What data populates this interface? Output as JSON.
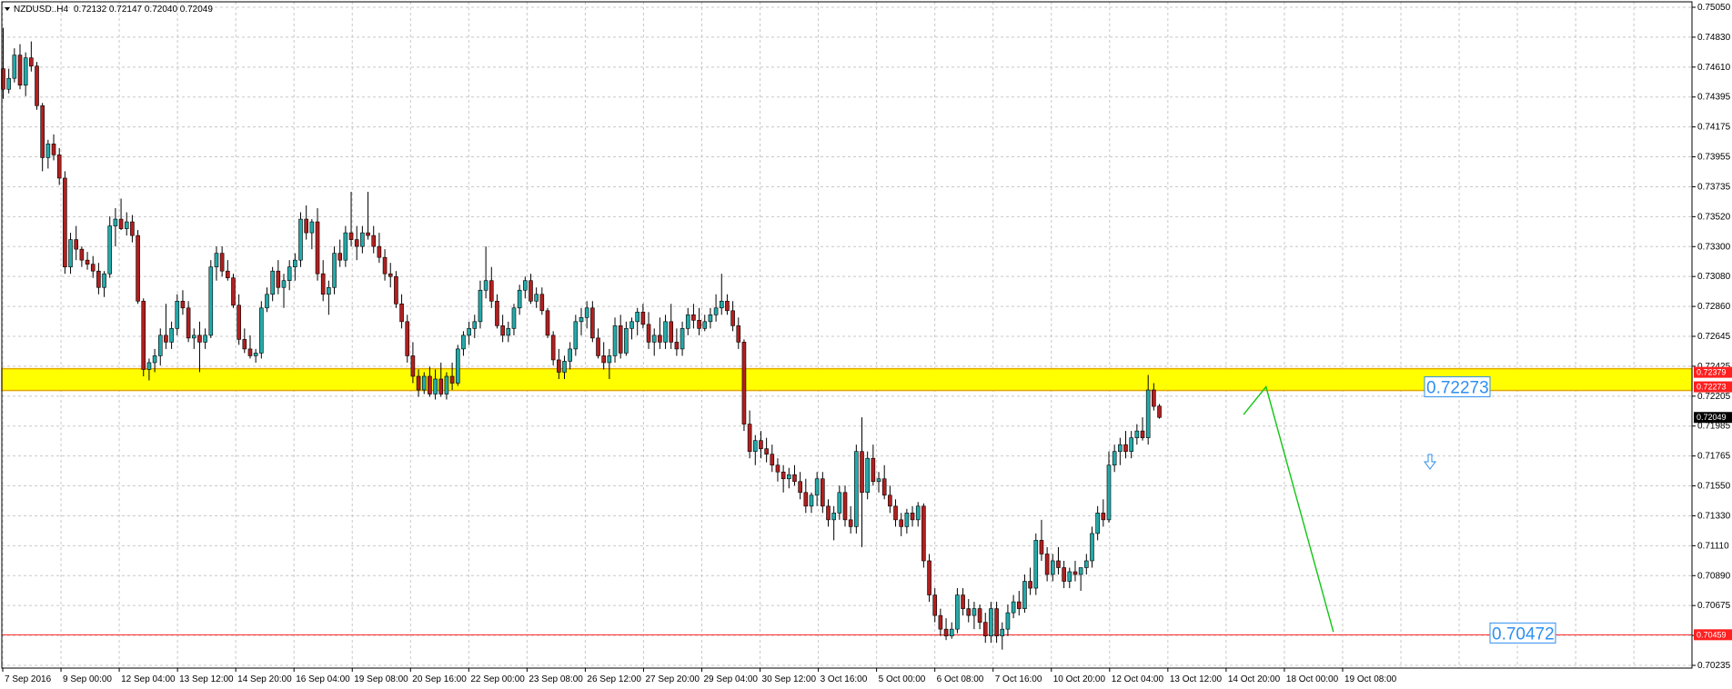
{
  "header": {
    "dropdown_icon": "triangle-down-icon",
    "symbol": "NZDUSD..H4",
    "ohlc": "0.72132 0.72147 0.72040 0.72049"
  },
  "colors": {
    "bull": "#25a9a9",
    "bear": "#b21f1f",
    "wick": "#000000",
    "grid": "#c8c8c8",
    "zone_fill": "#ffff00",
    "zone_border": "#e0a800",
    "support_line": "#ff2020",
    "projection": "#11c611",
    "level_label": "#2e8ff0"
  },
  "chart_data": {
    "type": "candlestick",
    "ylim": [
      0.70235,
      0.7505
    ],
    "y_ticks": [
      "0.75050",
      "0.74830",
      "0.74610",
      "0.74395",
      "0.74175",
      "0.73955",
      "0.73735",
      "0.73520",
      "0.73300",
      "0.73080",
      "0.72860",
      "0.72645",
      "0.72425",
      "0.72205",
      "0.71985",
      "0.71765",
      "0.71550",
      "0.71330",
      "0.71110",
      "0.70890",
      "0.70675",
      "0.70455",
      "0.70235"
    ],
    "x_ticks": [
      "7 Sep 2016",
      "9 Sep 00:00",
      "12 Sep 04:00",
      "13 Sep 12:00",
      "14 Sep 20:00",
      "16 Sep 04:00",
      "19 Sep 08:00",
      "20 Sep 16:00",
      "22 Sep 00:00",
      "23 Sep 08:00",
      "26 Sep 12:00",
      "27 Sep 20:00",
      "29 Sep 04:00",
      "30 Sep 12:00",
      "3 Oct 16:00",
      "5 Oct 00:00",
      "6 Oct 08:00",
      "7 Oct 16:00",
      "10 Oct 20:00",
      "12 Oct 04:00",
      "13 Oct 12:00",
      "14 Oct 20:00",
      "18 Oct 00:00",
      "19 Oct 08:00"
    ],
    "price_tags": [
      {
        "value": "0.72379",
        "y": 0.72379,
        "bg": "#ff2020",
        "fg": "#ffffff"
      },
      {
        "value": "0.72273",
        "y": 0.72273,
        "bg": "#ff2020",
        "fg": "#ffffff"
      },
      {
        "value": "0.72049",
        "y": 0.72049,
        "bg": "#000000",
        "fg": "#ffffff"
      },
      {
        "value": "0.70459",
        "y": 0.70459,
        "bg": "#ff2020",
        "fg": "#ffffff"
      }
    ],
    "resistance_zone": {
      "low": 0.72273,
      "high": 0.72379
    },
    "support_level": 0.70459,
    "level_labels": [
      {
        "text": "0.72273",
        "value": 0.72273
      },
      {
        "text": "0.70472",
        "value": 0.70472
      }
    ],
    "projection": [
      [
        221,
        0.7207
      ],
      [
        225,
        0.72273
      ],
      [
        237,
        0.7048
      ]
    ],
    "arrow_icon": "down-arrow-icon",
    "ohlc": [
      [
        0.746,
        0.749,
        0.7438,
        0.7445
      ],
      [
        0.7445,
        0.746,
        0.7442,
        0.7453
      ],
      [
        0.7453,
        0.7475,
        0.745,
        0.747
      ],
      [
        0.747,
        0.7478,
        0.7445,
        0.7448
      ],
      [
        0.7448,
        0.7472,
        0.744,
        0.7468
      ],
      [
        0.7468,
        0.748,
        0.7458,
        0.7462
      ],
      [
        0.7462,
        0.7465,
        0.743,
        0.7433
      ],
      [
        0.7433,
        0.7435,
        0.7385,
        0.7395
      ],
      [
        0.7395,
        0.7408,
        0.7387,
        0.7405
      ],
      [
        0.7405,
        0.7412,
        0.7393,
        0.7397
      ],
      [
        0.7397,
        0.7402,
        0.7375,
        0.738
      ],
      [
        0.738,
        0.7385,
        0.731,
        0.7315
      ],
      [
        0.7315,
        0.734,
        0.731,
        0.7335
      ],
      [
        0.7335,
        0.7345,
        0.732,
        0.7328
      ],
      [
        0.7328,
        0.733,
        0.7315,
        0.732
      ],
      [
        0.732,
        0.7326,
        0.7313,
        0.7317
      ],
      [
        0.7317,
        0.7323,
        0.7307,
        0.7312
      ],
      [
        0.7312,
        0.7318,
        0.7295,
        0.73
      ],
      [
        0.73,
        0.7312,
        0.7293,
        0.731
      ],
      [
        0.731,
        0.7352,
        0.7307,
        0.7345
      ],
      [
        0.7345,
        0.7358,
        0.733,
        0.735
      ],
      [
        0.735,
        0.7365,
        0.7342,
        0.7343
      ],
      [
        0.7343,
        0.7355,
        0.7338,
        0.7348
      ],
      [
        0.7348,
        0.7353,
        0.7333,
        0.7338
      ],
      [
        0.7338,
        0.7342,
        0.7288,
        0.729
      ],
      [
        0.729,
        0.7292,
        0.7235,
        0.724
      ],
      [
        0.724,
        0.7248,
        0.7232,
        0.7245
      ],
      [
        0.7245,
        0.7255,
        0.7238,
        0.725
      ],
      [
        0.725,
        0.727,
        0.7243,
        0.7265
      ],
      [
        0.7265,
        0.7288,
        0.7255,
        0.726
      ],
      [
        0.726,
        0.7275,
        0.7255,
        0.727
      ],
      [
        0.727,
        0.7295,
        0.7265,
        0.729
      ],
      [
        0.729,
        0.7298,
        0.728,
        0.7285
      ],
      [
        0.7285,
        0.729,
        0.726,
        0.7263
      ],
      [
        0.7263,
        0.727,
        0.7255,
        0.7265
      ],
      [
        0.7265,
        0.7275,
        0.7238,
        0.726
      ],
      [
        0.726,
        0.727,
        0.7255,
        0.7265
      ],
      [
        0.7265,
        0.732,
        0.7263,
        0.7315
      ],
      [
        0.7315,
        0.733,
        0.7305,
        0.7325
      ],
      [
        0.7325,
        0.733,
        0.7308,
        0.7312
      ],
      [
        0.7312,
        0.732,
        0.7305,
        0.7307
      ],
      [
        0.7307,
        0.731,
        0.7285,
        0.7287
      ],
      [
        0.7287,
        0.7295,
        0.7258,
        0.7262
      ],
      [
        0.7262,
        0.727,
        0.7252,
        0.7255
      ],
      [
        0.7255,
        0.7265,
        0.7248,
        0.725
      ],
      [
        0.725,
        0.7255,
        0.7245,
        0.7252
      ],
      [
        0.7252,
        0.729,
        0.7248,
        0.7285
      ],
      [
        0.7285,
        0.73,
        0.7282,
        0.7295
      ],
      [
        0.7295,
        0.7315,
        0.729,
        0.7312
      ],
      [
        0.7312,
        0.732,
        0.7295,
        0.73
      ],
      [
        0.73,
        0.731,
        0.7285,
        0.7305
      ],
      [
        0.7305,
        0.732,
        0.7298,
        0.7315
      ],
      [
        0.7315,
        0.7325,
        0.7305,
        0.732
      ],
      [
        0.732,
        0.7355,
        0.7315,
        0.735
      ],
      [
        0.735,
        0.736,
        0.7335,
        0.734
      ],
      [
        0.734,
        0.735,
        0.7328,
        0.7348
      ],
      [
        0.7348,
        0.7358,
        0.7305,
        0.731
      ],
      [
        0.731,
        0.732,
        0.729,
        0.7295
      ],
      [
        0.7295,
        0.7305,
        0.728,
        0.73
      ],
      [
        0.73,
        0.733,
        0.7295,
        0.7325
      ],
      [
        0.7325,
        0.7335,
        0.7315,
        0.732
      ],
      [
        0.732,
        0.7345,
        0.7315,
        0.734
      ],
      [
        0.734,
        0.737,
        0.733,
        0.7335
      ],
      [
        0.7335,
        0.7345,
        0.732,
        0.733
      ],
      [
        0.733,
        0.7345,
        0.7325,
        0.734
      ],
      [
        0.734,
        0.737,
        0.7335,
        0.7338
      ],
      [
        0.7338,
        0.7345,
        0.7325,
        0.733
      ],
      [
        0.733,
        0.734,
        0.7318,
        0.7322
      ],
      [
        0.7322,
        0.7328,
        0.7305,
        0.731
      ],
      [
        0.731,
        0.7318,
        0.73,
        0.7308
      ],
      [
        0.7308,
        0.7312,
        0.7285,
        0.7288
      ],
      [
        0.7288,
        0.7295,
        0.727,
        0.7275
      ],
      [
        0.7275,
        0.728,
        0.7245,
        0.725
      ],
      [
        0.725,
        0.726,
        0.723,
        0.7235
      ],
      [
        0.7235,
        0.724,
        0.722,
        0.7225
      ],
      [
        0.7225,
        0.7238,
        0.7222,
        0.7235
      ],
      [
        0.7235,
        0.7242,
        0.722,
        0.7222
      ],
      [
        0.7222,
        0.724,
        0.7218,
        0.7233
      ],
      [
        0.7233,
        0.7245,
        0.722,
        0.7222
      ],
      [
        0.7222,
        0.7238,
        0.7218,
        0.7235
      ],
      [
        0.7235,
        0.7245,
        0.7225,
        0.723
      ],
      [
        0.723,
        0.7258,
        0.7228,
        0.7255
      ],
      [
        0.7255,
        0.7268,
        0.725,
        0.7265
      ],
      [
        0.7265,
        0.7275,
        0.7258,
        0.727
      ],
      [
        0.727,
        0.728,
        0.7263,
        0.7275
      ],
      [
        0.7275,
        0.7305,
        0.727,
        0.7298
      ],
      [
        0.7298,
        0.733,
        0.7292,
        0.7305
      ],
      [
        0.7305,
        0.7315,
        0.7285,
        0.729
      ],
      [
        0.729,
        0.7295,
        0.727,
        0.7272
      ],
      [
        0.7272,
        0.728,
        0.726,
        0.7265
      ],
      [
        0.7265,
        0.7275,
        0.726,
        0.727
      ],
      [
        0.727,
        0.7288,
        0.7265,
        0.7285
      ],
      [
        0.7285,
        0.7302,
        0.728,
        0.7298
      ],
      [
        0.7298,
        0.7308,
        0.7292,
        0.7305
      ],
      [
        0.7305,
        0.731,
        0.7288,
        0.729
      ],
      [
        0.729,
        0.73,
        0.7285,
        0.7295
      ],
      [
        0.7295,
        0.73,
        0.728,
        0.7283
      ],
      [
        0.7283,
        0.7285,
        0.7263,
        0.7265
      ],
      [
        0.7265,
        0.7268,
        0.7243,
        0.7247
      ],
      [
        0.7247,
        0.7255,
        0.7233,
        0.7238
      ],
      [
        0.7238,
        0.725,
        0.7233,
        0.7246
      ],
      [
        0.7246,
        0.726,
        0.724,
        0.7255
      ],
      [
        0.7255,
        0.728,
        0.725,
        0.7275
      ],
      [
        0.7275,
        0.7285,
        0.7265,
        0.7278
      ],
      [
        0.7278,
        0.729,
        0.727,
        0.7285
      ],
      [
        0.7285,
        0.729,
        0.726,
        0.7263
      ],
      [
        0.7263,
        0.727,
        0.7248,
        0.725
      ],
      [
        0.725,
        0.726,
        0.724,
        0.7245
      ],
      [
        0.7245,
        0.7255,
        0.7233,
        0.725
      ],
      [
        0.725,
        0.7278,
        0.7245,
        0.7272
      ],
      [
        0.7272,
        0.728,
        0.7248,
        0.7252
      ],
      [
        0.7252,
        0.7275,
        0.725,
        0.727
      ],
      [
        0.727,
        0.7278,
        0.7262,
        0.7275
      ],
      [
        0.7275,
        0.7285,
        0.7265,
        0.7282
      ],
      [
        0.7282,
        0.7288,
        0.727,
        0.7273
      ],
      [
        0.7273,
        0.7282,
        0.7255,
        0.726
      ],
      [
        0.726,
        0.727,
        0.725,
        0.7265
      ],
      [
        0.7265,
        0.7278,
        0.7255,
        0.726
      ],
      [
        0.726,
        0.728,
        0.7255,
        0.7275
      ],
      [
        0.7275,
        0.7288,
        0.7255,
        0.726
      ],
      [
        0.726,
        0.727,
        0.725,
        0.7255
      ],
      [
        0.7255,
        0.7275,
        0.725,
        0.727
      ],
      [
        0.727,
        0.7285,
        0.7265,
        0.728
      ],
      [
        0.728,
        0.7288,
        0.727,
        0.7276
      ],
      [
        0.7276,
        0.7285,
        0.7265,
        0.727
      ],
      [
        0.727,
        0.728,
        0.7268,
        0.7275
      ],
      [
        0.7275,
        0.7285,
        0.727,
        0.728
      ],
      [
        0.728,
        0.7295,
        0.7275,
        0.7285
      ],
      [
        0.7285,
        0.731,
        0.728,
        0.729
      ],
      [
        0.729,
        0.7295,
        0.728,
        0.7283
      ],
      [
        0.7283,
        0.729,
        0.7268,
        0.7272
      ],
      [
        0.7272,
        0.7278,
        0.7255,
        0.726
      ],
      [
        0.726,
        0.7262,
        0.7195,
        0.72
      ],
      [
        0.72,
        0.721,
        0.7175,
        0.718
      ],
      [
        0.718,
        0.7192,
        0.717,
        0.7188
      ],
      [
        0.7188,
        0.7195,
        0.7175,
        0.7182
      ],
      [
        0.7182,
        0.719,
        0.7172,
        0.7178
      ],
      [
        0.7178,
        0.7185,
        0.7165,
        0.717
      ],
      [
        0.717,
        0.7175,
        0.7158,
        0.7165
      ],
      [
        0.7165,
        0.717,
        0.715,
        0.716
      ],
      [
        0.716,
        0.7168,
        0.7153,
        0.7163
      ],
      [
        0.7163,
        0.717,
        0.7155,
        0.7158
      ],
      [
        0.7158,
        0.7165,
        0.7145,
        0.715
      ],
      [
        0.715,
        0.716,
        0.7135,
        0.714
      ],
      [
        0.714,
        0.715,
        0.7135,
        0.7148
      ],
      [
        0.7148,
        0.7165,
        0.714,
        0.716
      ],
      [
        0.716,
        0.7165,
        0.7135,
        0.714
      ],
      [
        0.714,
        0.7145,
        0.7125,
        0.713
      ],
      [
        0.713,
        0.714,
        0.7115,
        0.7135
      ],
      [
        0.7135,
        0.7155,
        0.713,
        0.715
      ],
      [
        0.715,
        0.7155,
        0.7125,
        0.713
      ],
      [
        0.713,
        0.714,
        0.712,
        0.7125
      ],
      [
        0.7125,
        0.7185,
        0.712,
        0.718
      ],
      [
        0.718,
        0.7205,
        0.711,
        0.715
      ],
      [
        0.715,
        0.718,
        0.7145,
        0.7175
      ],
      [
        0.7175,
        0.7185,
        0.7155,
        0.7158
      ],
      [
        0.7158,
        0.7165,
        0.715,
        0.716
      ],
      [
        0.716,
        0.717,
        0.7145,
        0.7148
      ],
      [
        0.7148,
        0.7155,
        0.7135,
        0.714
      ],
      [
        0.714,
        0.7145,
        0.7125,
        0.713
      ],
      [
        0.713,
        0.7135,
        0.7118,
        0.7125
      ],
      [
        0.7125,
        0.7138,
        0.712,
        0.7135
      ],
      [
        0.7135,
        0.714,
        0.7125,
        0.713
      ],
      [
        0.713,
        0.7143,
        0.7125,
        0.714
      ],
      [
        0.714,
        0.7142,
        0.7095,
        0.71
      ],
      [
        0.71,
        0.7105,
        0.707,
        0.7075
      ],
      [
        0.7075,
        0.708,
        0.7055,
        0.706
      ],
      [
        0.706,
        0.7065,
        0.7045,
        0.705
      ],
      [
        0.705,
        0.7058,
        0.7042,
        0.7045
      ],
      [
        0.7045,
        0.7055,
        0.7043,
        0.705
      ],
      [
        0.705,
        0.708,
        0.7047,
        0.7075
      ],
      [
        0.7075,
        0.708,
        0.706,
        0.7065
      ],
      [
        0.7065,
        0.7072,
        0.7055,
        0.706
      ],
      [
        0.706,
        0.707,
        0.705,
        0.7065
      ],
      [
        0.7065,
        0.7068,
        0.705,
        0.7055
      ],
      [
        0.7055,
        0.7062,
        0.704,
        0.7045
      ],
      [
        0.7045,
        0.707,
        0.704,
        0.7065
      ],
      [
        0.7065,
        0.707,
        0.704,
        0.7045
      ],
      [
        0.7045,
        0.7055,
        0.7035,
        0.705
      ],
      [
        0.705,
        0.7068,
        0.7045,
        0.7062
      ],
      [
        0.7062,
        0.7075,
        0.7058,
        0.707
      ],
      [
        0.707,
        0.7078,
        0.706,
        0.7065
      ],
      [
        0.7065,
        0.709,
        0.7062,
        0.7085
      ],
      [
        0.7085,
        0.7095,
        0.7075,
        0.708
      ],
      [
        0.708,
        0.712,
        0.7075,
        0.7115
      ],
      [
        0.7115,
        0.713,
        0.71,
        0.7105
      ],
      [
        0.7105,
        0.711,
        0.7085,
        0.709
      ],
      [
        0.709,
        0.7105,
        0.7085,
        0.71
      ],
      [
        0.71,
        0.711,
        0.709,
        0.7095
      ],
      [
        0.7095,
        0.71,
        0.708,
        0.7085
      ],
      [
        0.7085,
        0.7095,
        0.708,
        0.7092
      ],
      [
        0.7092,
        0.71,
        0.7085,
        0.709
      ],
      [
        0.709,
        0.7095,
        0.7078,
        0.7095
      ],
      [
        0.7095,
        0.7105,
        0.709,
        0.71
      ],
      [
        0.71,
        0.7125,
        0.7095,
        0.712
      ],
      [
        0.712,
        0.714,
        0.7115,
        0.7135
      ],
      [
        0.7135,
        0.7145,
        0.7125,
        0.713
      ],
      [
        0.713,
        0.718,
        0.7128,
        0.717
      ],
      [
        0.717,
        0.7185,
        0.7165,
        0.718
      ],
      [
        0.718,
        0.719,
        0.717,
        0.7185
      ],
      [
        0.7185,
        0.7195,
        0.7175,
        0.718
      ],
      [
        0.718,
        0.7195,
        0.7175,
        0.719
      ],
      [
        0.719,
        0.72,
        0.7185,
        0.7195
      ],
      [
        0.7195,
        0.7205,
        0.7188,
        0.719
      ],
      [
        0.719,
        0.7236,
        0.7185,
        0.7225
      ],
      [
        0.7225,
        0.723,
        0.721,
        0.7213
      ],
      [
        0.72132,
        0.72147,
        0.7204,
        0.72049
      ]
    ]
  }
}
